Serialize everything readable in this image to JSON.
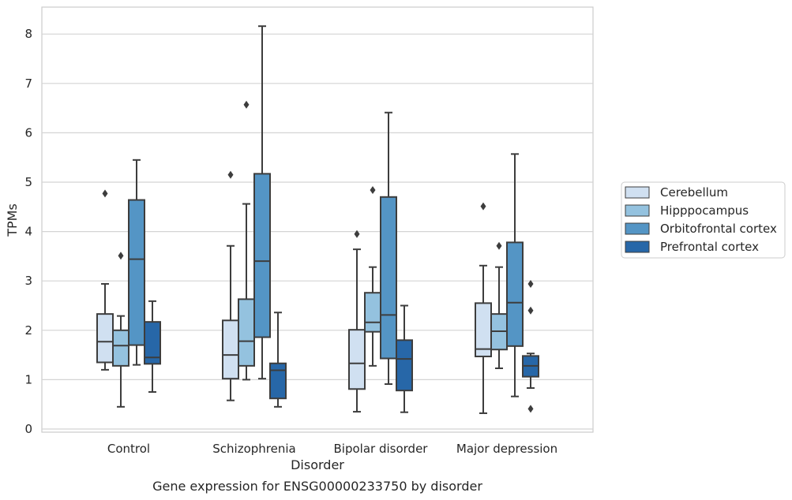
{
  "chart_data": {
    "type": "box",
    "title": "",
    "caption": "Gene expression for ENSG00000233750 by disorder",
    "xlabel": "Disorder",
    "ylabel": "TPMs",
    "ylim": [
      -0.1,
      8.55
    ],
    "yticks": [
      "0",
      "1",
      "2",
      "3",
      "4",
      "5",
      "6",
      "7",
      "8"
    ],
    "grid": "horizontal",
    "legend_placement": "right-center",
    "categories": [
      "Control",
      "Schizophrenia",
      "Bipolar disorder",
      "Major depression"
    ],
    "series": [
      {
        "name": "Cerebellum",
        "color": "#d0e0f1",
        "boxes": [
          {
            "whislo": 1.2,
            "q1": 1.35,
            "med": 1.77,
            "q3": 2.33,
            "whishi": 2.94,
            "fliers": [
              4.77
            ]
          },
          {
            "whislo": 0.58,
            "q1": 1.02,
            "med": 1.5,
            "q3": 2.2,
            "whishi": 3.71,
            "fliers": [
              5.15
            ]
          },
          {
            "whislo": 0.35,
            "q1": 0.81,
            "med": 1.33,
            "q3": 2.01,
            "whishi": 3.64,
            "fliers": [
              3.95
            ]
          },
          {
            "whislo": 0.32,
            "q1": 1.47,
            "med": 1.62,
            "q3": 2.55,
            "whishi": 3.31,
            "fliers": [
              4.51
            ]
          }
        ]
      },
      {
        "name": "Hipppocampus",
        "color": "#94c2df",
        "boxes": [
          {
            "whislo": 0.45,
            "q1": 1.28,
            "med": 1.69,
            "q3": 2.0,
            "whishi": 2.29,
            "fliers": [
              3.51
            ]
          },
          {
            "whislo": 1.0,
            "q1": 1.28,
            "med": 1.78,
            "q3": 2.63,
            "whishi": 4.56,
            "fliers": [
              6.57
            ]
          },
          {
            "whislo": 1.28,
            "q1": 1.97,
            "med": 2.16,
            "q3": 2.76,
            "whishi": 3.28,
            "fliers": [
              4.84
            ]
          },
          {
            "whislo": 1.23,
            "q1": 1.61,
            "med": 1.98,
            "q3": 2.33,
            "whishi": 3.28,
            "fliers": [
              3.71
            ]
          }
        ]
      },
      {
        "name": "Orbitofrontal cortex",
        "color": "#5495c5",
        "boxes": [
          {
            "whislo": 1.3,
            "q1": 1.7,
            "med": 3.44,
            "q3": 4.64,
            "whishi": 5.45,
            "fliers": []
          },
          {
            "whislo": 1.02,
            "q1": 1.86,
            "med": 3.4,
            "q3": 5.17,
            "whishi": 8.16,
            "fliers": []
          },
          {
            "whislo": 0.91,
            "q1": 1.43,
            "med": 2.31,
            "q3": 4.7,
            "whishi": 6.41,
            "fliers": []
          },
          {
            "whislo": 0.66,
            "q1": 1.68,
            "med": 2.56,
            "q3": 3.78,
            "whishi": 5.57,
            "fliers": []
          }
        ]
      },
      {
        "name": "Prefrontal cortex",
        "color": "#2767a8",
        "boxes": [
          {
            "whislo": 0.75,
            "q1": 1.32,
            "med": 1.45,
            "q3": 2.17,
            "whishi": 2.59,
            "fliers": []
          },
          {
            "whislo": 0.45,
            "q1": 0.62,
            "med": 1.19,
            "q3": 1.33,
            "whishi": 2.36,
            "fliers": []
          },
          {
            "whislo": 0.34,
            "q1": 0.78,
            "med": 1.42,
            "q3": 1.8,
            "whishi": 2.5,
            "fliers": []
          },
          {
            "whislo": 0.83,
            "q1": 1.06,
            "med": 1.28,
            "q3": 1.48,
            "whishi": 1.53,
            "fliers": [
              2.94,
              2.4,
              0.41
            ]
          }
        ]
      }
    ]
  }
}
